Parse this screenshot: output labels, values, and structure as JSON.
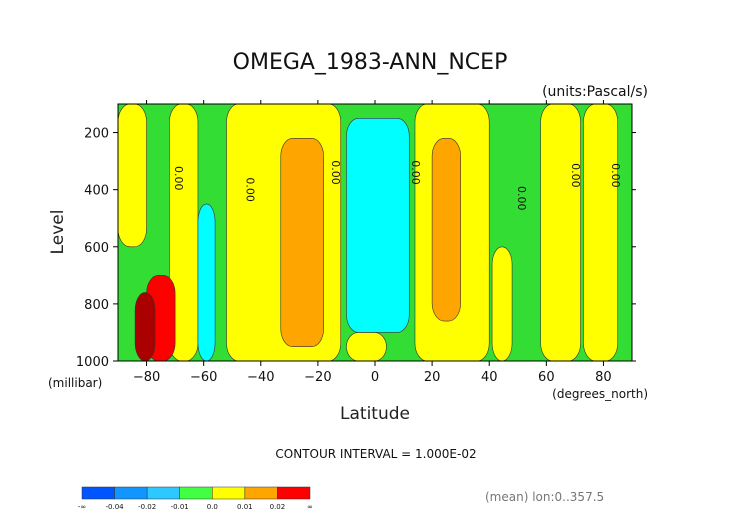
{
  "chart_data": {
    "type": "heatmap",
    "title": "OMEGA_1983-ANN_NCEP",
    "units_label": "(units:Pascal/s)",
    "xlabel": "Latitude",
    "ylabel": "Level",
    "x_unit_label": "(degrees_north)",
    "y_unit_label": "(millibar)",
    "xlim": [
      -90,
      90
    ],
    "ylim": [
      1000,
      100
    ],
    "xticks": [
      -80,
      -60,
      -40,
      -20,
      0,
      20,
      40,
      60,
      80
    ],
    "yticks": [
      200,
      400,
      600,
      800,
      1000
    ],
    "contour_interval_text": "CONTOUR INTERVAL = 1.000E-02",
    "mean_text": "(mean) lon:0..357.5",
    "zero_contour_label": "0.00",
    "zero_contour_label_positions": [
      {
        "lat": -70,
        "lev": 360
      },
      {
        "lat": -45,
        "lev": 400
      },
      {
        "lat": -15,
        "lev": 340
      },
      {
        "lat": 13,
        "lev": 340
      },
      {
        "lat": 50,
        "lev": 430
      },
      {
        "lat": 69,
        "lev": 350
      },
      {
        "lat": 83,
        "lev": 350
      }
    ],
    "colorbar": {
      "labels": [
        "-∞",
        "-0.04",
        "-0.02",
        "-0.01",
        "0.0",
        "0.01",
        "0.02",
        "∞"
      ],
      "colors": [
        "#0055ff",
        "#1196ff",
        "#2cc8ff",
        "#43ff43",
        "#ffff00",
        "#ffa500",
        "#ff0000"
      ]
    },
    "bands": [
      {
        "name": "green",
        "color": "#33dd33",
        "lat": [
          -90,
          90
        ],
        "lev": [
          100,
          1000
        ]
      },
      {
        "name": "yellow",
        "color": "#ffff00",
        "lat": [
          -90,
          -80
        ],
        "lev": [
          100,
          600
        ]
      },
      {
        "name": "yellow",
        "color": "#ffff00",
        "lat": [
          -72,
          -62
        ],
        "lev": [
          100,
          1000
        ]
      },
      {
        "name": "yellow",
        "color": "#ffff00",
        "lat": [
          -52,
          -12
        ],
        "lev": [
          100,
          1000
        ]
      },
      {
        "name": "yellow",
        "color": "#ffff00",
        "lat": [
          -10,
          4
        ],
        "lev": [
          900,
          1000
        ]
      },
      {
        "name": "yellow",
        "color": "#ffff00",
        "lat": [
          14,
          40
        ],
        "lev": [
          100,
          1000
        ]
      },
      {
        "name": "yellow",
        "color": "#ffff00",
        "lat": [
          41,
          48
        ],
        "lev": [
          600,
          1000
        ]
      },
      {
        "name": "yellow",
        "color": "#ffff00",
        "lat": [
          58,
          72
        ],
        "lev": [
          100,
          1000
        ]
      },
      {
        "name": "yellow",
        "color": "#ffff00",
        "lat": [
          73,
          85
        ],
        "lev": [
          100,
          1000
        ]
      },
      {
        "name": "cyan",
        "color": "#00ffff",
        "lat": [
          -62,
          -56
        ],
        "lev": [
          450,
          1000
        ]
      },
      {
        "name": "cyan",
        "color": "#00ffff",
        "lat": [
          -10,
          12
        ],
        "lev": [
          150,
          900
        ]
      },
      {
        "name": "orange",
        "color": "#ffa500",
        "lat": [
          -33,
          -18
        ],
        "lev": [
          220,
          950
        ]
      },
      {
        "name": "orange",
        "color": "#ffa500",
        "lat": [
          20,
          30
        ],
        "lev": [
          220,
          860
        ]
      },
      {
        "name": "red",
        "color": "#ff0000",
        "lat": [
          -80,
          -70
        ],
        "lev": [
          700,
          1000
        ]
      },
      {
        "name": "darkred",
        "color": "#aa0000",
        "lat": [
          -84,
          -77
        ],
        "lev": [
          760,
          1000
        ]
      }
    ]
  }
}
